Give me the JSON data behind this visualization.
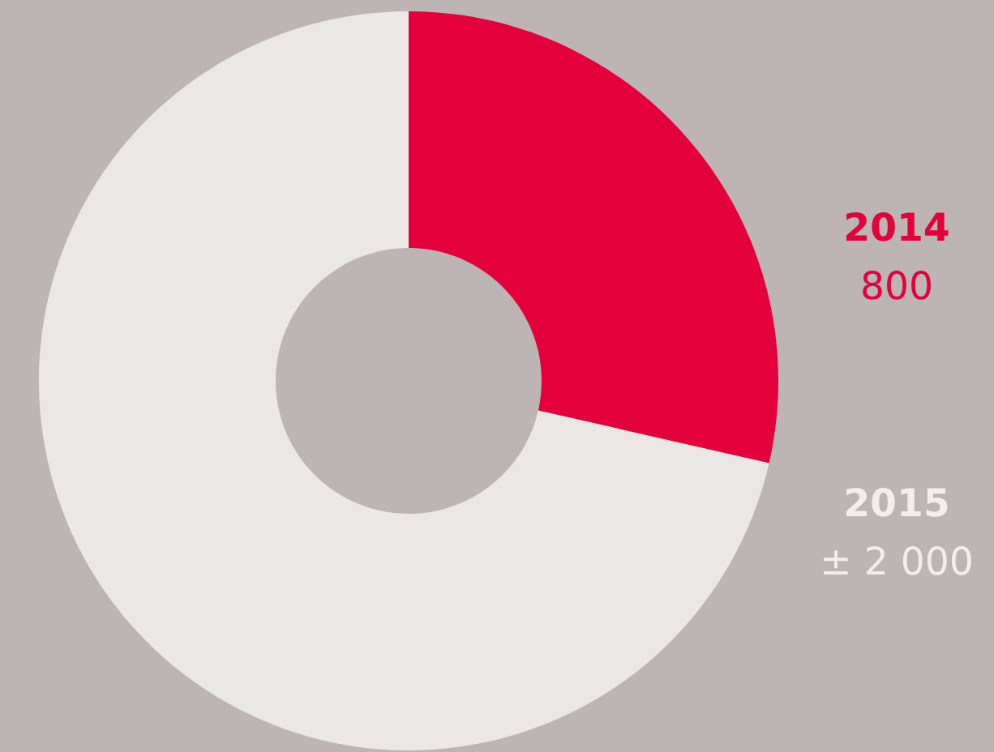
{
  "chart_data": {
    "type": "donut",
    "categories": [
      "2014",
      "2015"
    ],
    "values": [
      800,
      2000
    ],
    "value_labels": [
      "800",
      "± 2 000"
    ],
    "colors": [
      "#e4003a",
      "#ebe7e5"
    ]
  }
}
